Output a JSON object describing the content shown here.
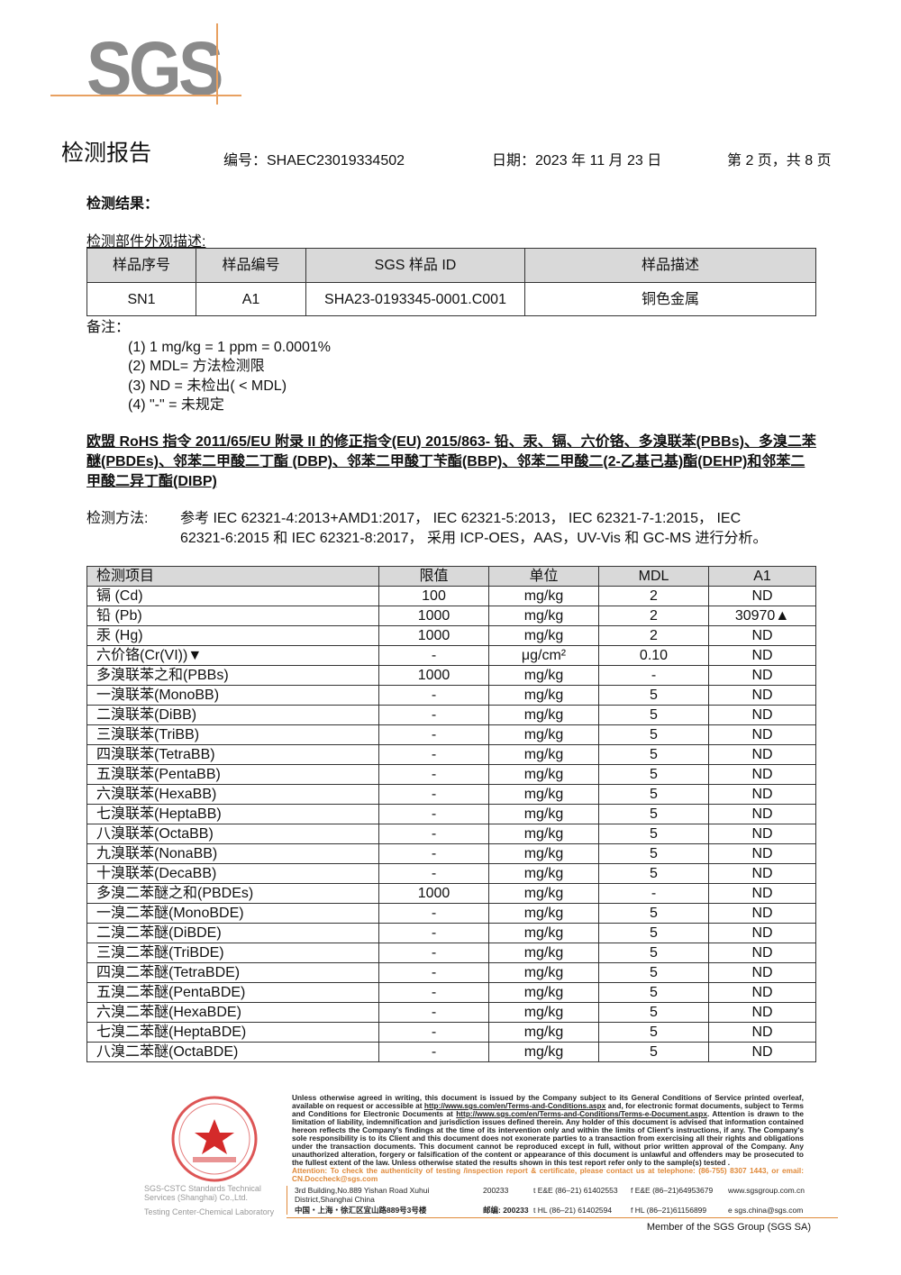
{
  "header": {
    "logo": "SGS",
    "title": "检测报告",
    "report_no": "编号：SHAEC23019334502",
    "date": "日期：2023 年 11 月 23 日",
    "page": "第 2 页，共 8 页"
  },
  "results_label": "检测结果：",
  "part_desc_label": "检测部件外观描述:",
  "sample_table": {
    "headers": [
      "样品序号",
      "样品编号",
      "SGS 样品 ID",
      "样品描述"
    ],
    "rows": [
      [
        "SN1",
        "A1",
        "SHA23-0193345-0001.C001",
        "铜色金属"
      ]
    ]
  },
  "notes": {
    "label": "备注：",
    "items": [
      "(1) 1 mg/kg = 1 ppm = 0.0001%",
      "(2) MDL=  方法检测限",
      "(3) ND = 未检出( < MDL)",
      "(4) \"-\" = 未规定"
    ]
  },
  "test_heading": "欧盟 RoHS 指令 2011/65/EU 附录 II 的修正指令(EU) 2015/863- 铅、汞、镉、六价铬、多溴联苯(PBBs)、多溴二苯醚(PBDEs)、邻苯二甲酸二丁酯 (DBP)、邻苯二甲酸丁苄酯(BBP)、邻苯二甲酸二(2-乙基己基)酯(DEHP)和邻苯二甲酸二异丁酯(DIBP)",
  "method": {
    "label": "检测方法:",
    "line1": "参考 IEC 62321-4:2013+AMD1:2017， IEC 62321-5:2013， IEC 62321-7-1:2015， IEC",
    "line2": "62321-6:2015 和 IEC 62321-8:2017， 采用 ICP-OES，AAS，UV-Vis 和 GC-MS 进行分析。"
  },
  "result_table": {
    "headers": [
      "检测项目",
      "限值",
      "单位",
      "MDL",
      "A1"
    ],
    "rows": [
      [
        "镉 (Cd)",
        "100",
        "mg/kg",
        "2",
        "ND"
      ],
      [
        "铅 (Pb)",
        "1000",
        "mg/kg",
        "2",
        "30970▲"
      ],
      [
        "汞 (Hg)",
        "1000",
        "mg/kg",
        "2",
        "ND"
      ],
      [
        "六价铬(Cr(VI))▼",
        "-",
        "μg/cm²",
        "0.10",
        "ND"
      ],
      [
        "多溴联苯之和(PBBs)",
        "1000",
        "mg/kg",
        "-",
        "ND"
      ],
      [
        "一溴联苯(MonoBB)",
        "-",
        "mg/kg",
        "5",
        "ND"
      ],
      [
        "二溴联苯(DiBB)",
        "-",
        "mg/kg",
        "5",
        "ND"
      ],
      [
        "三溴联苯(TriBB)",
        "-",
        "mg/kg",
        "5",
        "ND"
      ],
      [
        "四溴联苯(TetraBB)",
        "-",
        "mg/kg",
        "5",
        "ND"
      ],
      [
        "五溴联苯(PentaBB)",
        "-",
        "mg/kg",
        "5",
        "ND"
      ],
      [
        "六溴联苯(HexaBB)",
        "-",
        "mg/kg",
        "5",
        "ND"
      ],
      [
        "七溴联苯(HeptaBB)",
        "-",
        "mg/kg",
        "5",
        "ND"
      ],
      [
        "八溴联苯(OctaBB)",
        "-",
        "mg/kg",
        "5",
        "ND"
      ],
      [
        "九溴联苯(NonaBB)",
        "-",
        "mg/kg",
        "5",
        "ND"
      ],
      [
        "十溴联苯(DecaBB)",
        "-",
        "mg/kg",
        "5",
        "ND"
      ],
      [
        "多溴二苯醚之和(PBDEs)",
        "1000",
        "mg/kg",
        "-",
        "ND"
      ],
      [
        "一溴二苯醚(MonoBDE)",
        "-",
        "mg/kg",
        "5",
        "ND"
      ],
      [
        "二溴二苯醚(DiBDE)",
        "-",
        "mg/kg",
        "5",
        "ND"
      ],
      [
        "三溴二苯醚(TriBDE)",
        "-",
        "mg/kg",
        "5",
        "ND"
      ],
      [
        "四溴二苯醚(TetraBDE)",
        "-",
        "mg/kg",
        "5",
        "ND"
      ],
      [
        "五溴二苯醚(PentaBDE)",
        "-",
        "mg/kg",
        "5",
        "ND"
      ],
      [
        "六溴二苯醚(HexaBDE)",
        "-",
        "mg/kg",
        "5",
        "ND"
      ],
      [
        "七溴二苯醚(HeptaBDE)",
        "-",
        "mg/kg",
        "5",
        "ND"
      ],
      [
        "八溴二苯醚(OctaBDE)",
        "-",
        "mg/kg",
        "5",
        "ND"
      ]
    ]
  },
  "footer": {
    "disclaimer_1": "Unless otherwise agreed in writing, this document is issued by the Company subject to its General Conditions of Service printed overleaf, available on request or accessible at ",
    "link_1": "http://www.sgs.com/en/Terms-and-Conditions.aspx",
    "disclaimer_2": " and, for electronic format documents, subject to Terms and Conditions for Electronic Documents at ",
    "link_2": "http://www.sgs.com/en/Terms-and-Conditions/Terms-e-Document.aspx",
    "disclaimer_3": ". Attention is drawn to the limitation of liability, indemnification and jurisdiction issues defined therein. Any holder of this document is advised that information contained hereon reflects the Company's findings at the time of its intervention only and within the limits of Client's instructions, if any. The Company's sole responsibility is to its Client and this document does not exonerate parties to a transaction from exercising all their rights and obligations under the transaction documents. This document cannot be reproduced except in full, without prior written approval of the Company. Any unauthorized alteration, forgery or falsification of the content or appearance of this document is unlawful and offenders may be prosecuted to the fullest extent of the law. Unless otherwise stated the results shown in this test report refer only to the sample(s) tested .",
    "attention": "Attention: To check the authenticity of testing /inspection report & certificate, please contact us at telephone: (86-755) 8307 1443, or email: CN.Doccheck@sgs.com",
    "address_en": "3rd Building,No.889 Yishan Road Xuhui District,Shanghai China",
    "postcode_en": "200233",
    "address_cn": "中国・上海・徐汇区宜山路889号3号楼",
    "postcode_cn": "邮编: 200233",
    "phone_1": "t E&E (86–21) 61402553",
    "fax_1": "f E&E (86–21)64953679",
    "web": "www.sgsgroup.com.cn",
    "phone_2": "t HL (86–21) 61402594",
    "fax_2": "f HL (86–21)61156899",
    "email": "e  sgs.china@sgs.com",
    "company_1": "SGS-CSTC Standards Technical Services (Shanghai) Co.,Ltd.",
    "company_2": "Testing Center-Chemical Laboratory",
    "member": "Member of the SGS Group (SGS SA)",
    "stamp_text": "通标标准技术服务(上海)有限公司 检验检测专用章 Inspection & Testing Services"
  },
  "colors": {
    "accent": "#e08a3a",
    "stamp": "#d42a2a",
    "header_fill": "#d9d9d9"
  }
}
